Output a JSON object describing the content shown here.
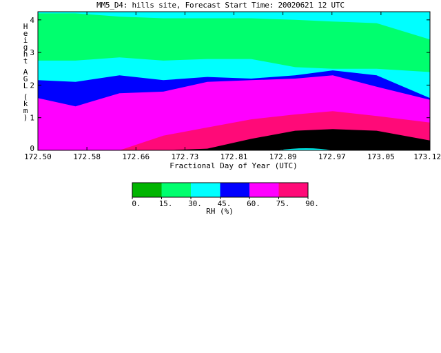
{
  "title": "MM5_D4: hills site,  Forecast Start Time: 20020621 12 UTC",
  "chart_data": {
    "type": "filled-contour",
    "title": "MM5_D4: hills site,  Forecast Start Time: 20020621 12 UTC",
    "xlabel": "Fractional Day of Year (UTC)",
    "ylabel": "Height AGL (km)",
    "xlim": [
      172.5,
      173.125
    ],
    "ylim": [
      0,
      4.25
    ],
    "x_ticks": [
      "172.50",
      "172.58",
      "172.66",
      "172.73",
      "172.81",
      "172.89",
      "172.97",
      "173.05",
      "173.12"
    ],
    "y_ticks": [
      "0",
      "1",
      "2",
      "3",
      "4"
    ],
    "colorbar": {
      "label": "RH (%)",
      "levels": [
        "0.",
        "15.",
        "30.",
        "45.",
        "60.",
        "75.",
        "90."
      ],
      "colors": [
        "#00b400",
        "#00ff6e",
        "#00ffff",
        "#0000ff",
        "#ff00ff",
        "#ff0a78"
      ]
    },
    "x": [
      172.5,
      172.56,
      172.63,
      172.7,
      172.77,
      172.84,
      172.91,
      172.97,
      173.04,
      173.125
    ],
    "contours": [
      {
        "level": 15,
        "heights": [
          4.2,
          4.2,
          4.1,
          4.05,
          4.05,
          4.05,
          4.0,
          3.95,
          3.9,
          3.4
        ]
      },
      {
        "level": 30,
        "heights": [
          2.75,
          2.75,
          2.85,
          2.75,
          2.8,
          2.8,
          2.55,
          2.5,
          2.5,
          2.4
        ]
      },
      {
        "level": 45,
        "heights": [
          2.15,
          2.1,
          2.3,
          2.15,
          2.25,
          2.2,
          2.3,
          2.45,
          2.3,
          1.6
        ]
      },
      {
        "level": 60,
        "heights": [
          1.6,
          1.35,
          1.75,
          1.8,
          2.1,
          2.15,
          2.2,
          2.3,
          1.95,
          1.55
        ]
      },
      {
        "level": 75,
        "heights": [
          0.0,
          0.0,
          0.0,
          0.45,
          0.7,
          0.95,
          1.1,
          1.2,
          1.05,
          0.85
        ]
      },
      {
        "level": 90,
        "heights": [
          0.0,
          0.0,
          0.0,
          0.0,
          0.05,
          0.35,
          0.6,
          0.65,
          0.6,
          0.3
        ]
      }
    ]
  }
}
